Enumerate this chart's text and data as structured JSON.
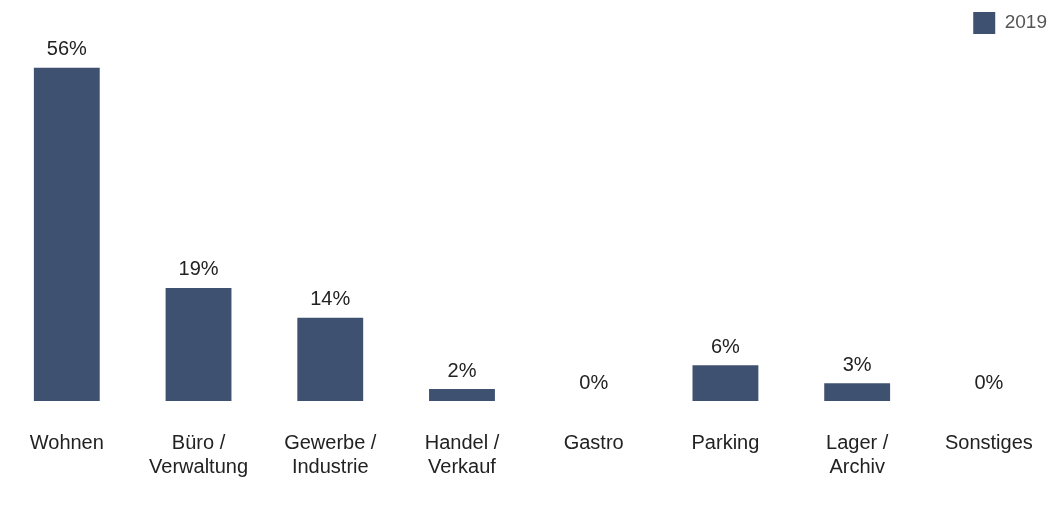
{
  "chart_data": {
    "type": "bar",
    "categories": [
      "Wohnen",
      "Büro / Verwaltung",
      "Gewerbe / Industrie",
      "Handel / Verkauf",
      "Gastro",
      "Parking",
      "Lager / Archiv",
      "Sonstiges"
    ],
    "series": [
      {
        "name": "2019",
        "color": "#3f5170",
        "values": [
          56,
          19,
          14,
          2,
          0,
          6,
          3,
          0
        ],
        "value_labels": [
          "56%",
          "19%",
          "14%",
          "2%",
          "0%",
          "6%",
          "3%",
          "0%"
        ]
      }
    ],
    "legend": "top right",
    "grid": false,
    "tick_labels": "x"
  }
}
